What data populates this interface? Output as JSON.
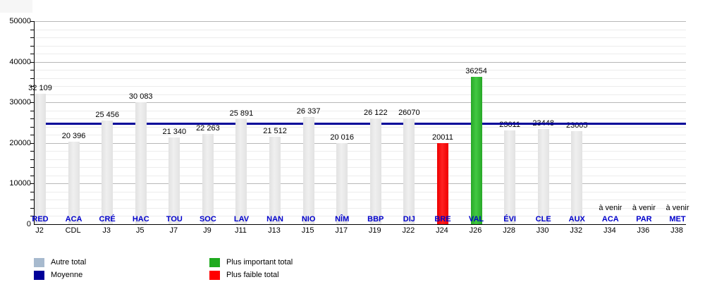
{
  "chart_data": {
    "type": "bar",
    "title": "",
    "xlabel": "",
    "ylabel": "",
    "ylim": [
      0,
      50000
    ],
    "y_major_step": 10000,
    "y_minor_step": 2000,
    "grid": "on",
    "legend_position": "bottom",
    "categories": [
      {
        "code": "RED",
        "sub": "J2",
        "value": 32109,
        "label": "32 109",
        "kind": "other"
      },
      {
        "code": "ACA",
        "sub": "CDL",
        "value": 20396,
        "label": "20 396",
        "kind": "other"
      },
      {
        "code": "CRÉ",
        "sub": "J3",
        "value": 25456,
        "label": "25 456",
        "kind": "other"
      },
      {
        "code": "HAC",
        "sub": "J5",
        "value": 30083,
        "label": "30 083",
        "kind": "other"
      },
      {
        "code": "TOU",
        "sub": "J7",
        "value": 21340,
        "label": "21 340",
        "kind": "other"
      },
      {
        "code": "SOC",
        "sub": "J9",
        "value": 22263,
        "label": "22 263",
        "kind": "other"
      },
      {
        "code": "LAV",
        "sub": "J11",
        "value": 25891,
        "label": "25 891",
        "kind": "other"
      },
      {
        "code": "NAN",
        "sub": "J13",
        "value": 21512,
        "label": "21 512",
        "kind": "other"
      },
      {
        "code": "NIO",
        "sub": "J15",
        "value": 26337,
        "label": "26 337",
        "kind": "other"
      },
      {
        "code": "NÎM",
        "sub": "J17",
        "value": 20016,
        "label": "20 016",
        "kind": "other"
      },
      {
        "code": "BBP",
        "sub": "J19",
        "value": 26122,
        "label": "26 122",
        "kind": "other"
      },
      {
        "code": "DIJ",
        "sub": "J22",
        "value": 26070,
        "label": "26070",
        "kind": "other"
      },
      {
        "code": "BRE",
        "sub": "J24",
        "value": 20011,
        "label": "20011",
        "kind": "lowest"
      },
      {
        "code": "VAL",
        "sub": "J26",
        "value": 36254,
        "label": "36254",
        "kind": "highest"
      },
      {
        "code": "ÉVI",
        "sub": "J28",
        "value": 23011,
        "label": "23011",
        "kind": "other"
      },
      {
        "code": "CLE",
        "sub": "J30",
        "value": 23448,
        "label": "23448",
        "kind": "other"
      },
      {
        "code": "AUX",
        "sub": "J32",
        "value": 23005,
        "label": "23005",
        "kind": "other"
      },
      {
        "code": "ACA",
        "sub": "J34",
        "value": null,
        "note": "à venir"
      },
      {
        "code": "PAR",
        "sub": "J36",
        "value": null,
        "note": "à venir"
      },
      {
        "code": "MET",
        "sub": "J38",
        "value": null,
        "note": "à venir"
      }
    ],
    "average": {
      "label": "Moyenne",
      "value": 24901
    },
    "legend": [
      {
        "label": "Autre total",
        "color": "#a7bace",
        "key": "other"
      },
      {
        "label": "Moyenne",
        "color": "#000099",
        "key": "average"
      },
      {
        "label": "Plus important total",
        "color": "#1faa1f",
        "key": "highest"
      },
      {
        "label": "Plus faible total",
        "color": "#ff0000",
        "key": "lowest"
      }
    ]
  },
  "colors": {
    "average_line": "#000099",
    "category_code": "#0000cc",
    "bar_other": "#e8e8e8",
    "bar_highest": "#2eb82e",
    "bar_lowest": "#ff0000",
    "grid_major": "#b8b8b8",
    "grid_minor": "#ececec"
  }
}
